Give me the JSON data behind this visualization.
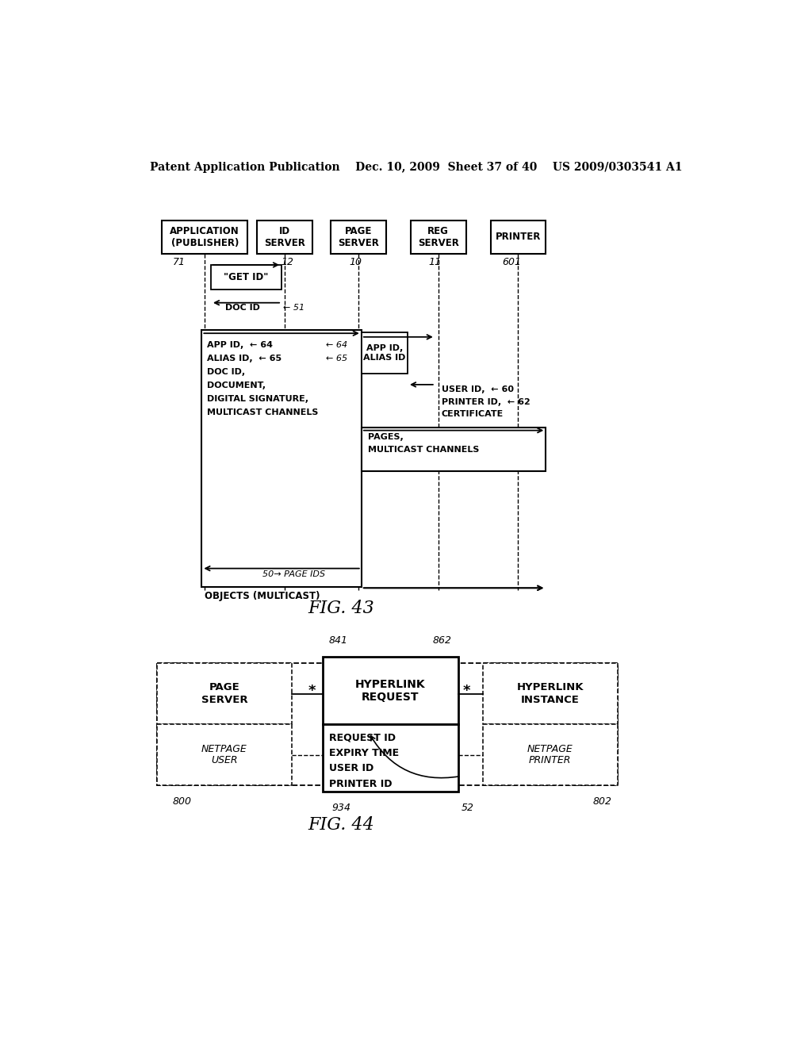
{
  "header": "Patent Application Publication    Dec. 10, 2009  Sheet 37 of 40    US 2009/0303541 A1",
  "fig43_label": "FIG. 43",
  "fig44_label": "FIG. 44",
  "bg": "#ffffff"
}
